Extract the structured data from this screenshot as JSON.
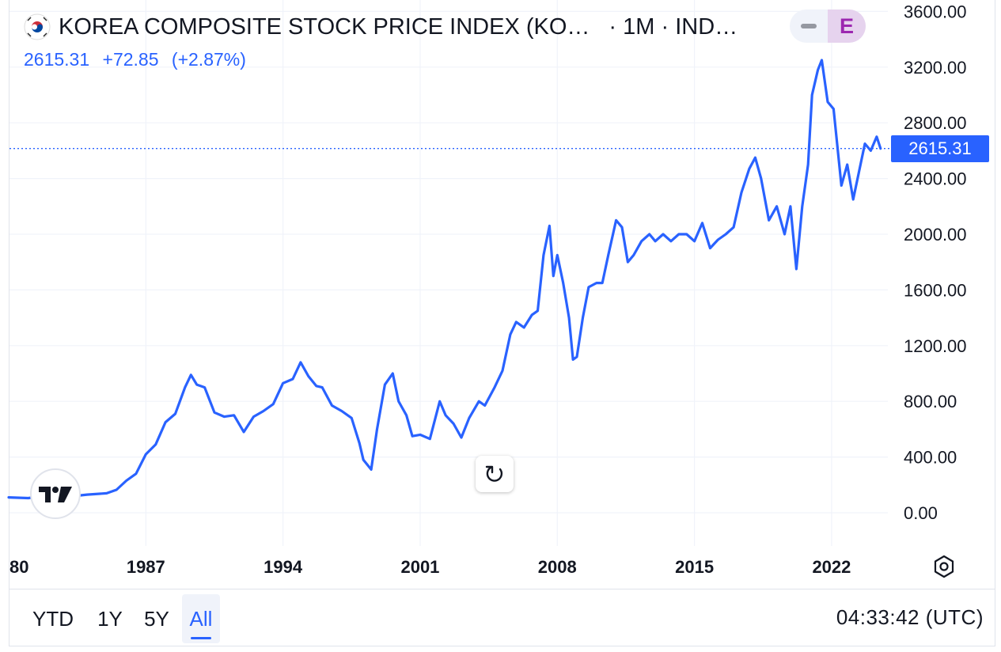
{
  "header": {
    "symbol_title": "KOREA COMPOSITE STOCK PRICE INDEX (KO…",
    "interval": "· 1M · IND…",
    "flag_icon": "south-korea-flag-icon",
    "price": "2615.31",
    "change": "+72.85",
    "change_pct": "(+2.87%)",
    "pill_minus_icon": "minus-icon",
    "pill_badge": "E"
  },
  "price_tag": "2615.31",
  "colors": {
    "line": "#2962ff",
    "accent": "#2962ff",
    "badge_bg": "#e6d3ee",
    "badge_text": "#9c27b0"
  },
  "controls": {
    "reset_icon": "reset-icon",
    "settings_icon": "settings-icon",
    "logo": "tradingview-logo"
  },
  "bottom_bar": {
    "ranges": [
      "YTD",
      "1Y",
      "5Y",
      "All"
    ],
    "active_range": "All",
    "clock": "04:33:42 (UTC)"
  },
  "chart_data": {
    "type": "line",
    "title": "",
    "xlabel": "",
    "ylabel": "",
    "x_ticks": [
      "80",
      "1987",
      "1994",
      "2001",
      "2008",
      "2015",
      "2022"
    ],
    "y_ticks": [
      "0.00",
      "400.00",
      "800.00",
      "1200.00",
      "1600.00",
      "2000.00",
      "2400.00",
      "2800.00",
      "3200.00",
      "3600.00"
    ],
    "ylim": [
      -250,
      3700
    ],
    "xlim": [
      1980.0,
      2024.8
    ],
    "grid": true,
    "last_price_line": 2615.31,
    "series": [
      {
        "x": [
          1980.0,
          1981.0,
          1982.0,
          1983.0,
          1984.0,
          1985.0,
          1985.5,
          1986.0,
          1986.5,
          1987.0,
          1987.5,
          1988.0,
          1988.5,
          1989.0,
          1989.3,
          1989.6,
          1990.0,
          1990.5,
          1991.0,
          1991.5,
          1992.0,
          1992.5,
          1993.0,
          1993.5,
          1994.0,
          1994.5,
          1994.9,
          1995.3,
          1995.7,
          1996.0,
          1996.5,
          1997.0,
          1997.5,
          1997.9,
          1998.1,
          1998.5,
          1998.8,
          1999.2,
          1999.6,
          1999.9,
          2000.3,
          2000.6,
          2001.0,
          2001.5,
          2002.0,
          2002.3,
          2002.7,
          2003.1,
          2003.5,
          2004.0,
          2004.3,
          2004.8,
          2005.2,
          2005.6,
          2005.9,
          2006.3,
          2006.7,
          2007.0,
          2007.3,
          2007.6,
          2007.8,
          2008.0,
          2008.3,
          2008.6,
          2008.8,
          2009.0,
          2009.3,
          2009.6,
          2010.0,
          2010.3,
          2010.6,
          2011.0,
          2011.3,
          2011.6,
          2011.9,
          2012.3,
          2012.7,
          2013.0,
          2013.4,
          2013.8,
          2014.2,
          2014.6,
          2015.0,
          2015.4,
          2015.8,
          2016.2,
          2016.6,
          2017.0,
          2017.4,
          2017.8,
          2018.1,
          2018.4,
          2018.8,
          2019.2,
          2019.6,
          2019.9,
          2020.2,
          2020.5,
          2020.8,
          2021.0,
          2021.3,
          2021.5,
          2021.8,
          2022.1,
          2022.5,
          2022.8,
          2023.1,
          2023.4,
          2023.7,
          2024.0,
          2024.3,
          2024.5
        ],
        "y": [
          110,
          105,
          125,
          115,
          130,
          140,
          165,
          230,
          280,
          420,
          490,
          650,
          710,
          900,
          990,
          920,
          900,
          720,
          690,
          700,
          580,
          690,
          730,
          780,
          930,
          960,
          1080,
          980,
          910,
          900,
          770,
          730,
          680,
          500,
          380,
          310,
          600,
          920,
          1000,
          800,
          700,
          550,
          560,
          530,
          800,
          700,
          640,
          540,
          680,
          800,
          770,
          900,
          1020,
          1280,
          1370,
          1330,
          1420,
          1450,
          1850,
          2060,
          1700,
          1850,
          1650,
          1400,
          1100,
          1120,
          1400,
          1620,
          1650,
          1650,
          1850,
          2100,
          2050,
          1800,
          1850,
          1950,
          2000,
          1950,
          2000,
          1950,
          2000,
          2000,
          1950,
          2080,
          1900,
          1960,
          2000,
          2050,
          2300,
          2470,
          2550,
          2400,
          2100,
          2200,
          2000,
          2200,
          1750,
          2200,
          2500,
          3000,
          3180,
          3250,
          2950,
          2900,
          2350,
          2500,
          2250,
          2450,
          2650,
          2600,
          2700,
          2615.31
        ]
      }
    ]
  }
}
